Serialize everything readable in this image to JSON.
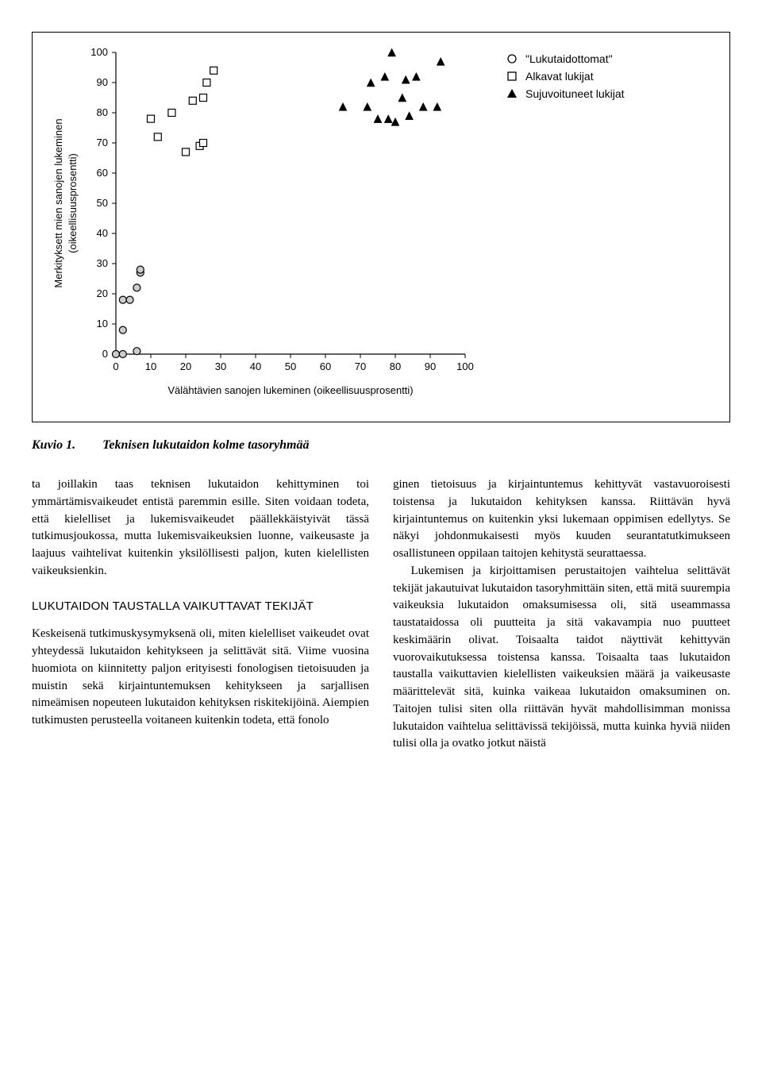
{
  "chart": {
    "type": "scatter",
    "xlabel": "Välähtävien sanojen lukeminen (oikeellisuusprosentti)",
    "ylabel_line1": "Merkityksett mien sanojen lukeminen",
    "ylabel_line2": "(oikeellisuusprosentti)",
    "xlim": [
      0,
      100
    ],
    "ylim": [
      0,
      100
    ],
    "xtick_step": 10,
    "ytick_step": 10,
    "xticks": [
      0,
      10,
      20,
      30,
      40,
      50,
      60,
      70,
      80,
      90,
      100
    ],
    "yticks": [
      0,
      10,
      20,
      30,
      40,
      50,
      60,
      70,
      80,
      90,
      100
    ],
    "background_color": "#ffffff",
    "axis_color": "#000000",
    "label_fontsize": 13,
    "tick_fontsize": 13,
    "series": {
      "illiterate": {
        "label": "\"Lukutaidottomat\"",
        "marker": "circle-open",
        "marker_size": 9,
        "stroke": "#000000",
        "fill": "#cccccc",
        "points": [
          [
            0,
            0
          ],
          [
            2,
            0
          ],
          [
            2,
            8
          ],
          [
            6,
            1
          ],
          [
            2,
            18
          ],
          [
            4,
            18
          ],
          [
            6,
            22
          ],
          [
            7,
            27
          ],
          [
            7,
            28
          ]
        ]
      },
      "beginning": {
        "label": "Alkavat lukijat",
        "marker": "square-open",
        "marker_size": 9,
        "stroke": "#000000",
        "fill": "#ffffff",
        "points": [
          [
            10,
            78
          ],
          [
            12,
            72
          ],
          [
            16,
            80
          ],
          [
            20,
            67
          ],
          [
            22,
            84
          ],
          [
            24,
            69
          ],
          [
            25,
            70
          ],
          [
            25,
            85
          ],
          [
            26,
            90
          ],
          [
            28,
            94
          ]
        ]
      },
      "fluent": {
        "label": "Sujuvoituneet lukijat",
        "marker": "triangle-filled",
        "marker_size": 10,
        "stroke": "#000000",
        "fill": "#000000",
        "points": [
          [
            65,
            82
          ],
          [
            72,
            82
          ],
          [
            73,
            90
          ],
          [
            75,
            78
          ],
          [
            77,
            92
          ],
          [
            78,
            78
          ],
          [
            79,
            100
          ],
          [
            80,
            77
          ],
          [
            82,
            85
          ],
          [
            83,
            91
          ],
          [
            84,
            79
          ],
          [
            86,
            92
          ],
          [
            88,
            82
          ],
          [
            92,
            82
          ],
          [
            93,
            97
          ]
        ]
      }
    },
    "legend_position": "right"
  },
  "caption": {
    "label": "Kuvio 1.",
    "text": "Teknisen lukutaidon kolme tasoryhmää"
  },
  "body": {
    "p1": "ta joillakin taas teknisen lukutaidon kehittyminen toi ymmärtämisvaikeudet entistä paremmin esille. Siten voidaan todeta, että kielelliset ja lukemisvaikeudet päällekkäistyivät tässä tutkimusjoukossa, mutta lukemisvaikeuksien luonne, vaikeusaste ja laajuus vaihtelivat kuitenkin yksilöllisesti paljon, kuten kielellisten vaikeuksienkin.",
    "h1": "LUKUTAIDON TAUSTALLA VAIKUTTAVAT TEKIJÄT",
    "p2": "Keskeisenä tutkimuskysymyksenä oli, miten kielelliset vaikeudet ovat yhteydessä lukutaidon kehitykseen ja selittävät sitä. Viime vuosina huomiota on kiinnitetty paljon erityisesti fonologisen tietoisuuden ja muistin sekä kirjaintuntemuksen kehitykseen ja sarjallisen nimeämisen nopeuteen lukutaidon kehityksen riskitekijöinä. Aiempien tutkimusten perusteella voitaneen kuitenkin todeta, että fonolo",
    "p3": "ginen tietoisuus ja kirjaintuntemus kehittyvät vastavuoroisesti toistensa ja lukutaidon kehityksen kanssa. Riittävän hyvä kirjaintuntemus on kuitenkin yksi lukemaan oppimisen edellytys. Se näkyi johdonmukaisesti myös kuuden seurantatutkimukseen osallistuneen oppilaan taitojen kehitystä seurattaessa.",
    "p4": "Lukemisen ja kirjoittamisen perustaitojen vaihtelua selittävät tekijät jakautuivat lukutaidon tasoryhmittäin siten, että mitä suurempia vaikeuksia lukutaidon omaksumisessa oli, sitä useammassa taustataidossa oli puutteita ja sitä vakavampia nuo puutteet keskimäärin olivat. Toisaalta taidot näyttivät kehittyvän vuorovaikutuksessa toistensa kanssa. Toisaalta taas lukutaidon taustalla vaikuttavien kielellisten vaikeuksien määrä ja vaikeusaste määrittelevät sitä, kuinka vaikeaa lukutaidon omaksuminen on. Taitojen tulisi siten olla riittävän hyvät mahdollisimman monissa lukutaidon vaihtelua selittävissä tekijöissä, mutta kuinka hyviä niiden tulisi olla ja ovatko jotkut näistä"
  }
}
